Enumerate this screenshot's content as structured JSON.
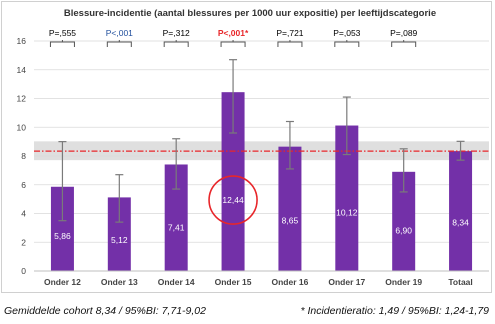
{
  "chart_data": {
    "type": "bar",
    "title": "Blessure-incidentie (aantal blessures per 1000 uur expositie) per leeftijdscategorie",
    "categories": [
      "Onder 12",
      "Onder 13",
      "Onder 14",
      "Onder 15",
      "Onder 16",
      "Onder 17",
      "Onder 19",
      "Totaal"
    ],
    "values": [
      5.86,
      5.12,
      7.41,
      12.44,
      8.65,
      10.12,
      6.9,
      8.34
    ],
    "value_labels": [
      "5,86",
      "5,12",
      "7,41",
      "12,44",
      "8,65",
      "10,12",
      "6,90",
      "8,34"
    ],
    "error_bars": [
      {
        "low": 3.5,
        "high": 9.0
      },
      {
        "low": 3.4,
        "high": 6.7
      },
      {
        "low": 5.7,
        "high": 9.2
      },
      {
        "low": 9.6,
        "high": 14.7
      },
      {
        "low": 7.1,
        "high": 10.4
      },
      {
        "low": 8.1,
        "high": 12.1
      },
      {
        "low": 5.5,
        "high": 8.5
      },
      {
        "low": 7.71,
        "high": 9.02
      }
    ],
    "p_values": [
      "P=,555",
      "P<,001",
      "P=,312",
      "P<,001*",
      "P=,721",
      "P=,053",
      "P=,089"
    ],
    "p_value_colors": [
      "#000000",
      "#1f4e9c",
      "#000000",
      "#e8262a",
      "#000000",
      "#000000",
      "#000000"
    ],
    "ylim": [
      0,
      16
    ],
    "yticks": [
      0,
      2,
      4,
      6,
      8,
      10,
      12,
      14,
      16
    ],
    "reference_line": {
      "value": 8.34,
      "ci_low": 7.71,
      "ci_high": 9.02
    },
    "highlight_category": "Onder 15",
    "grid": true,
    "colors": {
      "bar": "#7330a8",
      "error_bar": "#7a7a7a",
      "reference_line": "#e8262a",
      "ci_band": "#d9d9d9",
      "highlight_circle": "#e8262a",
      "grid": "#d9d9d9"
    }
  },
  "footer": {
    "left": "Gemiddelde cohort 8,34 / 95%BI: 7,71-9,02",
    "right": "* Incidentieratio: 1,49 / 95%BI: 1,24-1,79"
  }
}
